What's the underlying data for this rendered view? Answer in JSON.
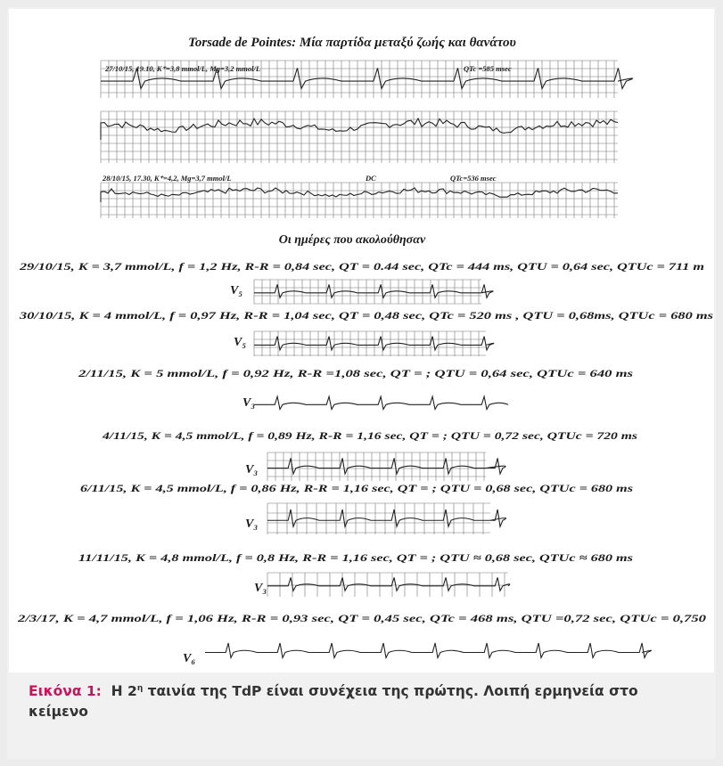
{
  "figure": {
    "title": "Torsade de Pointes: Μία παρτίδα μεταξύ ζωής και θανάτου",
    "strip_annotations": [
      "27/10/15, 19.10, K⁺=3,8 mmol/L, Mg=3,2 mmol/L",
      "QTc =585 msec",
      "28/10/15, 17.30, K⁺=4,2, Mg=3,7 mmol/L",
      "DC",
      "QTc=536 msec"
    ],
    "subtitle": "Οι ημέρες που ακολούθησαν",
    "records": [
      {
        "text": "29/10/15, K = 3,7 mmol/L, f = 1,2 Hz, R-R = 0,84 sec, QT = 0.44 sec, QTc = 444 ms, QTU = 0,64 sec, QTUc = 711 m",
        "lead": "V₅"
      },
      {
        "text": "30/10/15, K = 4 mmol/L, f = 0,97 Hz, R-R = 1,04 sec, QT = 0,48 sec, QTc = 520 ms , QTU = 0,68ms, QTUc = 680 ms",
        "lead": "V₅"
      },
      {
        "text": "2/11/15, K = 5 mmol/L, f = 0,92 Hz, R-R =1,08 sec, QT = ; QTU = 0,64 sec, QTUc = 640 ms",
        "lead": "V₃"
      },
      {
        "text": "4/11/15, K = 4,5 mmol/L, f = 0,89 Hz, R-R = 1,16 sec, QT = ; QTU = 0,72 sec, QTUc = 720 ms",
        "lead": "V₃"
      },
      {
        "text": "6/11/15, K = 4,5 mmol/L, f = 0,86 Hz, R-R = 1,16 sec, QT = ; QTU = 0,68 sec, QTUc = 680 ms",
        "lead": "V₃"
      },
      {
        "text": "11/11/15, K = 4,8 mmol/L, f = 0,8 Hz, R-R = 1,16 sec, QT = ; QTU ≈ 0,68 sec, QTUc ≈ 680 ms",
        "lead": "V₃"
      },
      {
        "text": "2/3/17, K = 4,7 mmol/L, f = 1,06 Hz, R-R = 0,93 sec, QT = 0,45 sec, QTc = 468 ms, QTU =0,72 sec, QTUc = 0,750",
        "lead": "V₆"
      }
    ]
  },
  "caption": {
    "label": "Εικόνα 1:",
    "text_before": "Η 2",
    "superscript": "η",
    "text_after": " ταινία της TdP είναι συνέχεια της πρώτης. Λοιπή ερμηνεία στο κείμενο"
  }
}
